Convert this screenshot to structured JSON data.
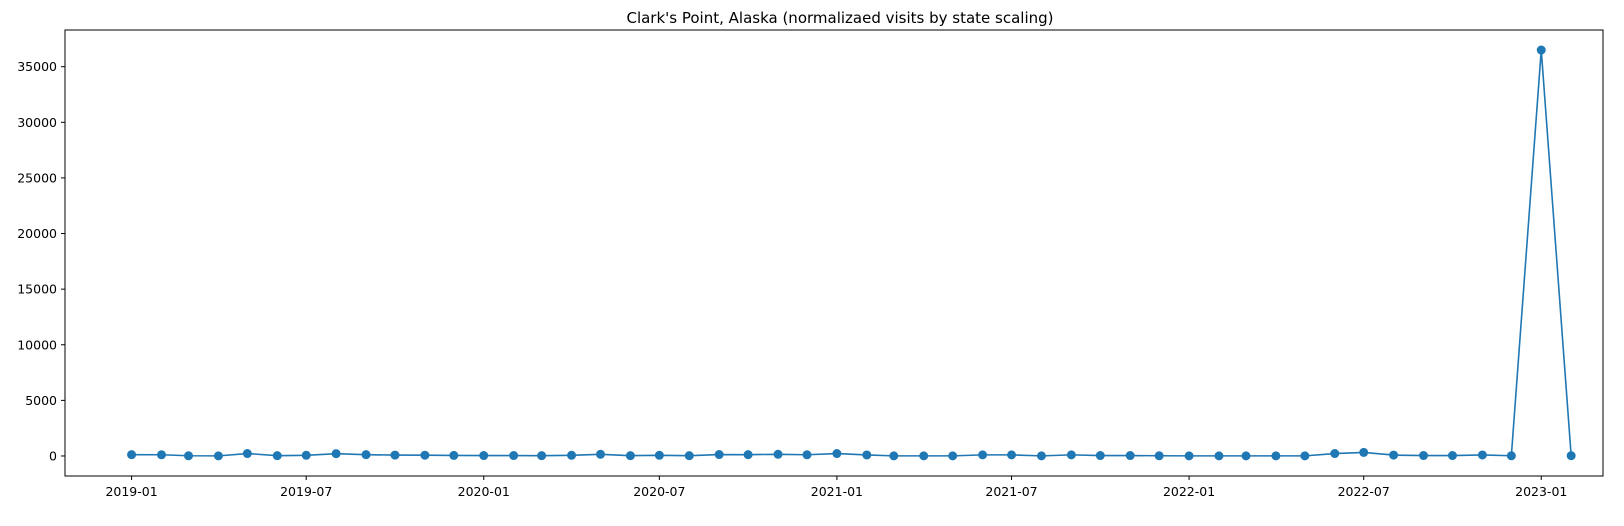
{
  "chart_data": {
    "type": "line",
    "title": "Clark's Point, Alaska (normalizaed visits by state scaling)",
    "xlabel": "",
    "ylabel": "",
    "x_range": [
      "2018-10-24",
      "2023-03-06"
    ],
    "ylim": [
      -1800,
      38300
    ],
    "x_ticks": [
      "2019-01",
      "2019-07",
      "2020-01",
      "2020-07",
      "2021-01",
      "2021-07",
      "2022-01",
      "2022-07",
      "2023-01"
    ],
    "y_ticks": [
      0,
      5000,
      10000,
      15000,
      20000,
      25000,
      30000,
      35000
    ],
    "grid": false,
    "legend": "none",
    "series": [
      {
        "color": "#1f77b4",
        "marker": "circle",
        "x": [
          "2019-01",
          "2019-02",
          "2019-03",
          "2019-04",
          "2019-05",
          "2019-06",
          "2019-07",
          "2019-08",
          "2019-09",
          "2019-10",
          "2019-11",
          "2019-12",
          "2020-01",
          "2020-02",
          "2020-03",
          "2020-04",
          "2020-05",
          "2020-06",
          "2020-07",
          "2020-08",
          "2020-09",
          "2020-10",
          "2020-11",
          "2020-12",
          "2021-01",
          "2021-02",
          "2021-03",
          "2021-04",
          "2021-05",
          "2021-06",
          "2021-07",
          "2021-08",
          "2021-09",
          "2021-10",
          "2021-11",
          "2021-12",
          "2022-01",
          "2022-02",
          "2022-03",
          "2022-04",
          "2022-05",
          "2022-06",
          "2022-07",
          "2022-08",
          "2022-09",
          "2022-10",
          "2022-11",
          "2022-12",
          "2023-01",
          "2023-02"
        ],
        "values": [
          120,
          110,
          20,
          10,
          220,
          30,
          60,
          210,
          120,
          80,
          70,
          50,
          40,
          40,
          30,
          60,
          150,
          30,
          60,
          30,
          130,
          120,
          150,
          110,
          220,
          90,
          10,
          10,
          10,
          100,
          100,
          10,
          100,
          40,
          40,
          20,
          10,
          10,
          10,
          10,
          10,
          220,
          320,
          80,
          40,
          40,
          90,
          20,
          36500,
          30
        ]
      }
    ]
  }
}
